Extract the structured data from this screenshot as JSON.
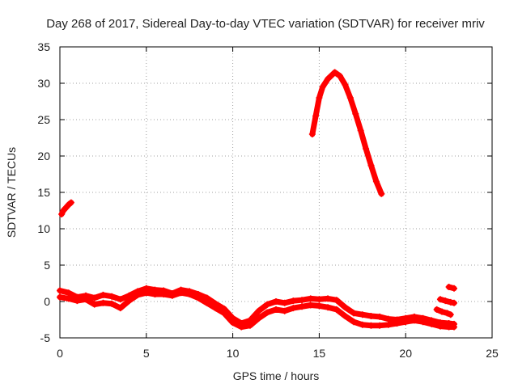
{
  "chart_data": {
    "type": "scatter",
    "title": "Day 268 of 2017, Sidereal Day-to-day VTEC variation (SDTVAR) for receiver mriv",
    "xlabel": "GPS time / hours",
    "ylabel": "SDTVAR / TECUs",
    "xlim": [
      0,
      25
    ],
    "ylim": [
      -5,
      35
    ],
    "xticks": [
      0,
      5,
      10,
      15,
      20,
      25
    ],
    "yticks": [
      -5,
      0,
      5,
      10,
      15,
      20,
      25,
      30,
      35
    ],
    "grid": true,
    "marker": "+",
    "color": "#ff0000",
    "series": [
      {
        "name": "segment-early-high",
        "points": [
          [
            0.1,
            12.0
          ],
          [
            0.2,
            12.5
          ],
          [
            0.35,
            12.9
          ],
          [
            0.5,
            13.3
          ],
          [
            0.65,
            13.6
          ]
        ]
      },
      {
        "name": "segment-peak",
        "points": [
          [
            14.6,
            23.0
          ],
          [
            14.8,
            25.5
          ],
          [
            15.0,
            28.0
          ],
          [
            15.2,
            29.5
          ],
          [
            15.5,
            30.6
          ],
          [
            15.9,
            31.5
          ],
          [
            16.2,
            31.0
          ],
          [
            16.5,
            29.8
          ],
          [
            16.8,
            28.0
          ],
          [
            17.1,
            25.8
          ],
          [
            17.4,
            23.5
          ],
          [
            17.7,
            21.0
          ],
          [
            18.0,
            18.7
          ],
          [
            18.3,
            16.5
          ],
          [
            18.6,
            14.8
          ]
        ]
      },
      {
        "name": "segment-low-a",
        "points": [
          [
            0,
            1.5
          ],
          [
            0.5,
            1.2
          ],
          [
            1,
            0.6
          ],
          [
            1.5,
            0.8
          ],
          [
            2,
            0.5
          ],
          [
            2.5,
            0.9
          ],
          [
            3,
            0.7
          ],
          [
            3.5,
            0.3
          ],
          [
            4,
            0.8
          ],
          [
            4.5,
            1.4
          ],
          [
            5,
            1.8
          ],
          [
            5.5,
            1.6
          ],
          [
            6,
            1.5
          ],
          [
            6.5,
            1.1
          ],
          [
            7,
            1.6
          ],
          [
            7.5,
            1.4
          ],
          [
            8,
            1.0
          ],
          [
            8.5,
            0.5
          ],
          [
            9,
            -0.3
          ],
          [
            9.5,
            -1.0
          ],
          [
            10,
            -2.3
          ],
          [
            10.5,
            -3.0
          ],
          [
            11,
            -2.6
          ],
          [
            11.5,
            -1.3
          ],
          [
            12,
            -0.4
          ],
          [
            12.5,
            0.0
          ],
          [
            13,
            -0.2
          ],
          [
            13.5,
            0.1
          ],
          [
            14,
            0.2
          ],
          [
            14.5,
            0.4
          ],
          [
            15,
            0.3
          ],
          [
            15.5,
            0.4
          ],
          [
            16,
            0.2
          ],
          [
            16.5,
            -0.8
          ],
          [
            17,
            -1.6
          ],
          [
            17.5,
            -1.8
          ],
          [
            18,
            -2.0
          ],
          [
            18.5,
            -2.1
          ],
          [
            19,
            -2.4
          ],
          [
            19.5,
            -2.5
          ],
          [
            20,
            -2.3
          ],
          [
            20.5,
            -2.1
          ],
          [
            21,
            -2.3
          ],
          [
            21.5,
            -2.6
          ],
          [
            22,
            -2.9
          ],
          [
            22.5,
            -3.0
          ],
          [
            22.8,
            -3.1
          ]
        ]
      },
      {
        "name": "segment-low-b",
        "points": [
          [
            0,
            0.6
          ],
          [
            0.5,
            0.4
          ],
          [
            1,
            0.1
          ],
          [
            1.5,
            0.3
          ],
          [
            2,
            -0.4
          ],
          [
            2.5,
            -0.2
          ],
          [
            3,
            -0.3
          ],
          [
            3.5,
            -0.9
          ],
          [
            4,
            0.1
          ],
          [
            4.5,
            0.9
          ],
          [
            5,
            1.2
          ],
          [
            5.5,
            1.0
          ],
          [
            6,
            1.0
          ],
          [
            6.5,
            0.8
          ],
          [
            7,
            1.2
          ],
          [
            7.5,
            1.0
          ],
          [
            8,
            0.5
          ],
          [
            8.5,
            -0.2
          ],
          [
            9,
            -0.9
          ],
          [
            9.5,
            -1.6
          ],
          [
            10,
            -2.9
          ],
          [
            10.5,
            -3.5
          ],
          [
            11,
            -3.3
          ],
          [
            11.5,
            -2.3
          ],
          [
            12,
            -1.5
          ],
          [
            12.5,
            -1.1
          ],
          [
            13,
            -1.3
          ],
          [
            13.5,
            -0.9
          ],
          [
            14,
            -0.7
          ],
          [
            14.5,
            -0.5
          ],
          [
            15,
            -0.6
          ],
          [
            15.5,
            -0.8
          ],
          [
            16,
            -1.1
          ],
          [
            16.5,
            -2.0
          ],
          [
            17,
            -2.8
          ],
          [
            17.5,
            -3.2
          ],
          [
            18,
            -3.3
          ],
          [
            18.5,
            -3.3
          ],
          [
            19,
            -3.2
          ],
          [
            19.5,
            -3.0
          ],
          [
            20,
            -2.8
          ],
          [
            20.5,
            -2.6
          ],
          [
            21,
            -2.8
          ],
          [
            21.5,
            -3.1
          ],
          [
            22,
            -3.4
          ],
          [
            22.5,
            -3.5
          ],
          [
            22.8,
            -3.5
          ]
        ]
      },
      {
        "name": "segment-late",
        "points": [
          [
            21.8,
            -1.1
          ],
          [
            22.1,
            -1.4
          ],
          [
            22.4,
            -1.6
          ],
          [
            22.6,
            -1.8
          ]
        ]
      },
      {
        "name": "segment-late-b",
        "points": [
          [
            22.0,
            0.3
          ],
          [
            22.3,
            0.1
          ],
          [
            22.6,
            -0.1
          ],
          [
            22.8,
            -0.2
          ]
        ]
      },
      {
        "name": "segment-late-c",
        "points": [
          [
            22.5,
            2.0
          ],
          [
            22.8,
            1.8
          ]
        ]
      }
    ]
  }
}
